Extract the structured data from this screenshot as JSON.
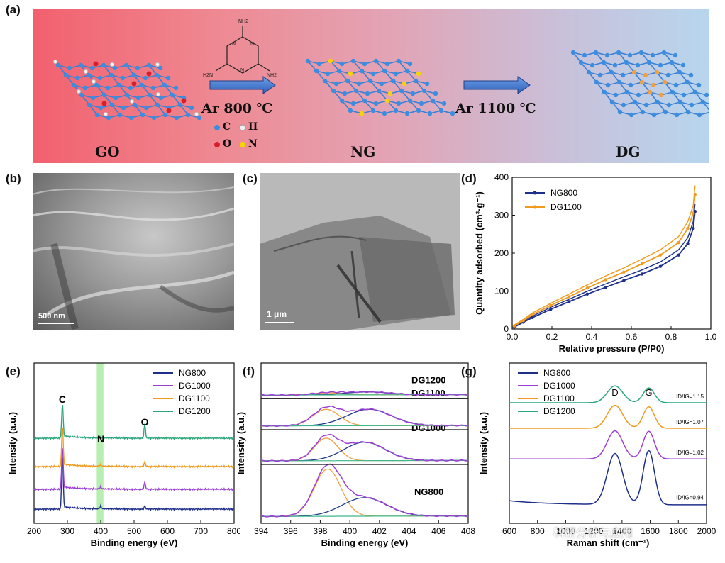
{
  "panel_labels": {
    "a": "(a)",
    "b": "(b)",
    "c": "(c)",
    "d": "(d)",
    "e": "(e)",
    "f": "(f)",
    "g": "(g)"
  },
  "scheme": {
    "go_label": "GO",
    "ng_label": "NG",
    "dg_label": "DG",
    "step1": "Ar 800 ℃",
    "step2": "Ar 1100 ℃",
    "melamine": {
      "nh2_top": "NH2",
      "nh2_left": "H2N",
      "nh2_right": "NH2"
    },
    "legend": [
      {
        "symbol": "C",
        "color": "#3b8de0"
      },
      {
        "symbol": "H",
        "color": "#f0f0f0"
      },
      {
        "symbol": "O",
        "color": "#d81e2a"
      },
      {
        "symbol": "N",
        "color": "#f5d400"
      }
    ]
  },
  "micrographs": {
    "sem_scale": "500 nm",
    "tem_scale": "1 μm"
  },
  "colors": {
    "NG800": "#1f2f8c",
    "DG1000": "#9b3fd4",
    "DG1100": "#f09a1e",
    "DG1200": "#2aa77a",
    "fit_orange": "#f0a040",
    "fit_blue": "#1f3a8c",
    "fit_green": "#3db88a",
    "highlight": "#a8eaa0"
  },
  "chart_data": [
    {
      "id": "d",
      "type": "line",
      "xlabel": "Relative pressure (P/P0)",
      "ylabel": "Quantity adsorbed (cm³·g⁻¹)",
      "xlim": [
        0.0,
        1.0
      ],
      "ylim": [
        0,
        400
      ],
      "xticks": [
        "0.0",
        "0.2",
        "0.4",
        "0.6",
        "0.8",
        "1.0"
      ],
      "yticks": [
        "0",
        "100",
        "200",
        "300",
        "400"
      ],
      "legend_position": "top-left",
      "series": [
        {
          "name": "NG800",
          "x": [
            0.0,
            0.05,
            0.1,
            0.2,
            0.3,
            0.4,
            0.5,
            0.6,
            0.7,
            0.8,
            0.9,
            0.95,
            0.98,
            0.99
          ],
          "y": [
            5,
            18,
            30,
            52,
            72,
            92,
            110,
            128,
            145,
            165,
            195,
            225,
            265,
            310
          ]
        },
        {
          "name": "DG1100",
          "x": [
            0.0,
            0.05,
            0.1,
            0.2,
            0.3,
            0.4,
            0.5,
            0.6,
            0.7,
            0.8,
            0.9,
            0.95,
            0.98,
            0.99
          ],
          "y": [
            8,
            22,
            38,
            62,
            85,
            108,
            130,
            150,
            172,
            195,
            228,
            265,
            305,
            355
          ]
        }
      ]
    },
    {
      "id": "e",
      "type": "line",
      "xlabel": "Binding energy (eV)",
      "ylabel": "Intensity (a.u.)",
      "xlim": [
        200,
        800
      ],
      "xticks": [
        "200",
        "300",
        "400",
        "500",
        "600",
        "700",
        "800"
      ],
      "peak_labels": [
        "C",
        "N",
        "O"
      ],
      "highlight_range": [
        388,
        408
      ],
      "legend_position": "top-right",
      "series": [
        {
          "name": "NG800",
          "baseline": 0.0,
          "peaks": [
            {
              "x": 285,
              "h": 0.95
            },
            {
              "x": 400,
              "h": 0.05
            },
            {
              "x": 532,
              "h": 0.05
            }
          ]
        },
        {
          "name": "DG1000",
          "baseline": 0.35,
          "peaks": [
            {
              "x": 285,
              "h": 0.75
            },
            {
              "x": 400,
              "h": 0.04
            },
            {
              "x": 532,
              "h": 0.12
            }
          ]
        },
        {
          "name": "DG1100",
          "baseline": 0.75,
          "peaks": [
            {
              "x": 285,
              "h": 0.7
            },
            {
              "x": 400,
              "h": 0.03
            },
            {
              "x": 532,
              "h": 0.08
            }
          ]
        },
        {
          "name": "DG1200",
          "baseline": 1.25,
          "peaks": [
            {
              "x": 285,
              "h": 0.6
            },
            {
              "x": 400,
              "h": 0.01
            },
            {
              "x": 532,
              "h": 0.25
            }
          ]
        }
      ]
    },
    {
      "id": "f",
      "type": "line",
      "xlabel": "Binding energy (eV)",
      "ylabel": "Intensity (a.u.)",
      "xlim": [
        394,
        408
      ],
      "xticks": [
        "394",
        "396",
        "398",
        "400",
        "402",
        "404",
        "406",
        "408"
      ],
      "series": [
        {
          "name": "NG800",
          "offset": 0.0,
          "components": [
            {
              "center": 398.5,
              "height": 1.15,
              "width": 0.9
            },
            {
              "center": 401.0,
              "height": 0.45,
              "width": 1.5
            }
          ]
        },
        {
          "name": "DG1000",
          "offset": 1.35,
          "components": [
            {
              "center": 398.4,
              "height": 0.55,
              "width": 0.8
            },
            {
              "center": 401.0,
              "height": 0.45,
              "width": 1.4
            }
          ]
        },
        {
          "name": "DG1100",
          "offset": 2.2,
          "components": [
            {
              "center": 398.4,
              "height": 0.4,
              "width": 0.9
            },
            {
              "center": 401.3,
              "height": 0.4,
              "width": 1.5
            }
          ]
        },
        {
          "name": "DG1200",
          "offset": 2.95,
          "components": [
            {
              "center": 398.5,
              "height": 0.05,
              "width": 1.0
            },
            {
              "center": 401.2,
              "height": 0.07,
              "width": 1.5
            }
          ]
        }
      ]
    },
    {
      "id": "g",
      "type": "line",
      "xlabel": "Raman shift (cm⁻¹)",
      "ylabel": "Intensity (a.u.)",
      "xlim": [
        600,
        2000
      ],
      "xticks": [
        "600",
        "800",
        "1000",
        "1200",
        "1400",
        "1600",
        "1800",
        "2000"
      ],
      "peak_labels": [
        "D",
        "G"
      ],
      "legend_position": "top-left",
      "series": [
        {
          "name": "NG800",
          "ratio": "ID/IG=0.94",
          "baseline": 0.0,
          "d": 1.0,
          "g": 1.06
        },
        {
          "name": "DG1000",
          "ratio": "ID/IG=1.02",
          "baseline": 0.9,
          "d": 0.55,
          "g": 0.54
        },
        {
          "name": "DG1100",
          "ratio": "ID/IG=1.07",
          "baseline": 1.5,
          "d": 0.45,
          "g": 0.42
        },
        {
          "name": "DG1200",
          "ratio": "ID/IG=1.15",
          "baseline": 2.0,
          "d": 0.33,
          "g": 0.29
        }
      ]
    }
  ],
  "watermark": "科研分析与应用"
}
